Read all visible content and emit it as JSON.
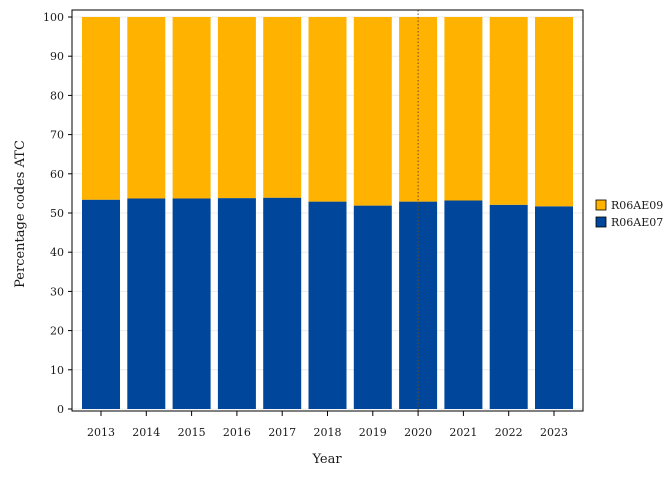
{
  "chart_data": {
    "type": "bar",
    "stacked": true,
    "percent": true,
    "title": "",
    "xlabel": "Year",
    "ylabel": "Percentage codes ATC",
    "ylim": [
      0,
      100
    ],
    "yticks": [
      0,
      10,
      20,
      30,
      40,
      50,
      60,
      70,
      80,
      90,
      100
    ],
    "grid": true,
    "legend_position": "right",
    "categories": [
      "2013",
      "2014",
      "2015",
      "2016",
      "2017",
      "2018",
      "2019",
      "2020",
      "2021",
      "2022",
      "2023"
    ],
    "series": [
      {
        "name": "R06AE07",
        "color": "#00479b",
        "values": [
          53.4,
          53.7,
          53.7,
          53.8,
          53.9,
          52.9,
          51.9,
          52.9,
          53.2,
          52.1,
          51.7
        ]
      },
      {
        "name": "R06AE09",
        "color": "#ffb300",
        "values": [
          46.6,
          46.3,
          46.3,
          46.2,
          46.1,
          47.1,
          48.1,
          47.1,
          46.8,
          47.9,
          48.3
        ]
      }
    ],
    "reference_line": {
      "category": "2020",
      "style": "dotted"
    }
  }
}
